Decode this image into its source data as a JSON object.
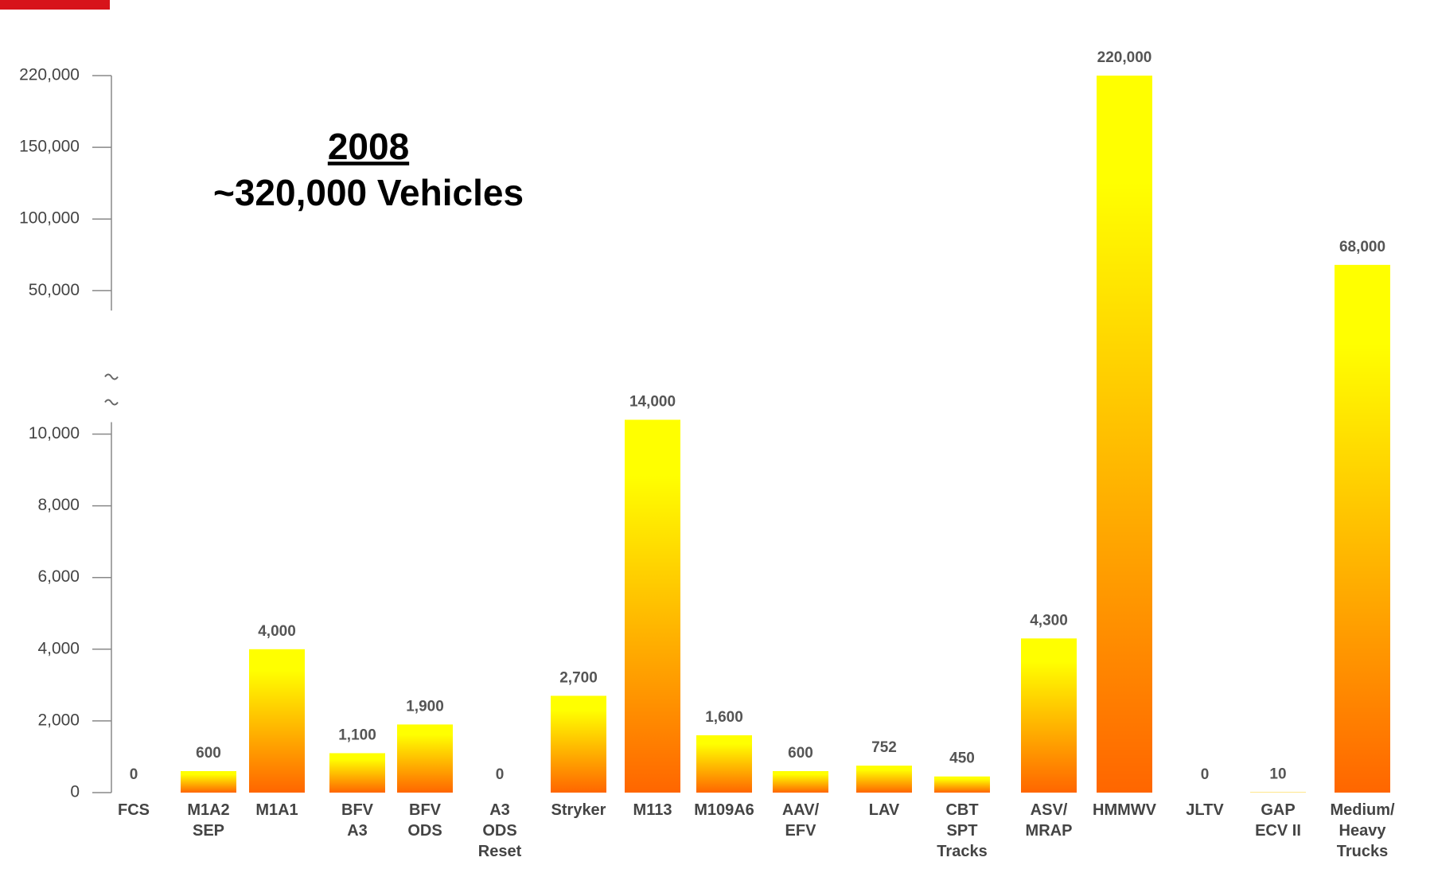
{
  "chart_data": {
    "type": "bar",
    "title": "2008",
    "subtitle": "~320,000 Vehicles",
    "categories": [
      "FCS",
      "M1A2\nSEP",
      "M1A1",
      "BFV\nA3",
      "BFV\nODS",
      "A3\nODS\nReset",
      "Stryker",
      "M113",
      "M109A6",
      "AAV/\nEFV",
      "LAV",
      "CBT\nSPT\nTracks",
      "ASV/\nMRAP",
      "HMMWV",
      "JLTV",
      "GAP\nECV II",
      "Medium/\nHeavy\nTrucks"
    ],
    "values": [
      0,
      600,
      4000,
      1100,
      1900,
      0,
      2700,
      14000,
      1600,
      600,
      752,
      450,
      4300,
      220000,
      0,
      10,
      68000
    ],
    "value_labels": [
      "0",
      "600",
      "4,000",
      "1,100",
      "1,900",
      "0",
      "2,700",
      "14,000",
      "1,600",
      "600",
      "752",
      "450",
      "4,300",
      "220,000",
      "0",
      "10",
      "68,000"
    ],
    "yticks": [
      0,
      {
        "value": 2000,
        "label": "2,000"
      },
      {
        "value": 4000,
        "label": "4,000"
      },
      {
        "value": 6000,
        "label": "6,000"
      },
      {
        "value": 8000,
        "label": "8,000"
      },
      {
        "value": 10000,
        "label": "10,000"
      },
      {
        "value": 50000,
        "label": "50,000"
      },
      {
        "value": 100000,
        "label": "100,000"
      },
      {
        "value": 150000,
        "label": "150,000"
      },
      {
        "value": 220000,
        "label": "220,000"
      }
    ],
    "ylim": [
      0,
      220000
    ],
    "axis_break": true,
    "color_top": "#ffff00",
    "color_bottom": "#ff6600"
  }
}
